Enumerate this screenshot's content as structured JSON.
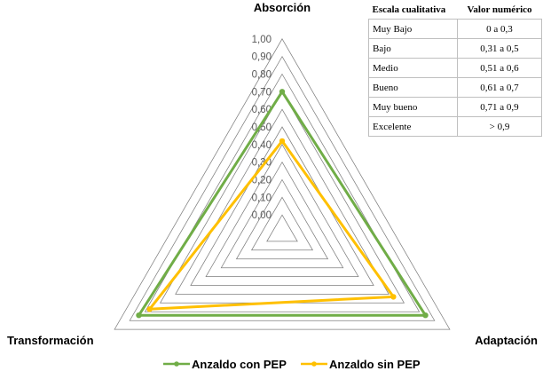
{
  "chart_data": {
    "type": "radar",
    "axes": [
      "Absorción",
      "Adaptación",
      "Transformación"
    ],
    "ticks": [
      "0,00",
      "0,10",
      "0,20",
      "0,30",
      "0,40",
      "0,50",
      "0,60",
      "0,70",
      "0,80",
      "0,90",
      "1,00"
    ],
    "rlim": [
      0,
      1
    ],
    "series": [
      {
        "name": "Anzaldo con PEP",
        "values": [
          0.7,
          0.84,
          0.84
        ],
        "color": "#70ad47"
      },
      {
        "name": "Anzaldo sin PEP",
        "values": [
          0.42,
          0.63,
          0.77
        ],
        "color": "#ffc000"
      }
    ],
    "legend_position": "bottom",
    "grid_color": "#7f7f7f"
  },
  "scale_table": {
    "headers": [
      "Escala cualitativa",
      "Valor numérico"
    ],
    "rows": [
      [
        "Muy Bajo",
        "0 a 0,3"
      ],
      [
        "Bajo",
        "0,31 a 0,5"
      ],
      [
        "Medio",
        "0,51 a 0,6"
      ],
      [
        "Bueno",
        "0,61 a 0,7"
      ],
      [
        "Muy bueno",
        "0,71 a 0,9"
      ],
      [
        "Excelente",
        "> 0,9"
      ]
    ]
  }
}
